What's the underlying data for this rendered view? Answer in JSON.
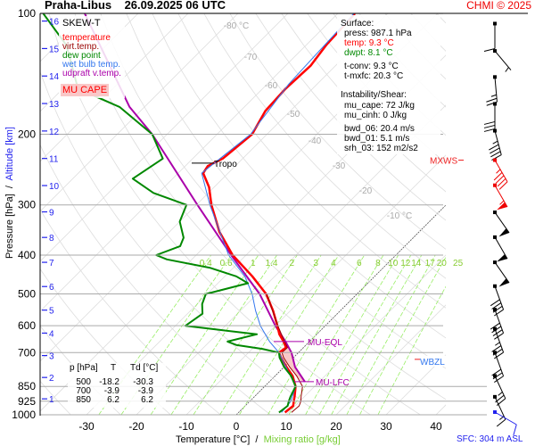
{
  "header": {
    "station": "Praha-Libus",
    "datetime": "26.09.2025 06 UTC",
    "credit": "CHMI © 2025"
  },
  "legend": {
    "title": "SKEW-T",
    "items": [
      {
        "label": "temperature",
        "color": "#ff0000"
      },
      {
        "label": "virt.temp.",
        "color": "#990000"
      },
      {
        "label": "dew point",
        "color": "#008800"
      },
      {
        "label": "wet bulb temp.",
        "color": "#3377ee"
      },
      {
        "label": "udpraft v.temp.",
        "color": "#aa00aa"
      }
    ],
    "cape_label": "MU CAPE"
  },
  "surface": {
    "heading": "Surface:",
    "press": "press: 987.1 hPa",
    "temp": "temp: 9.3 °C",
    "dwpt": "dwpt: 8.1 °C",
    "tconv": "t-conv: 9.3 °C",
    "tmxfc": "t-mxfc: 20.3 °C",
    "instab_heading": "Instability/Shear:",
    "mu_cape": "mu_cape: 72 J/kg",
    "mu_cinh": "mu_cinh: 0 J/kg",
    "bwd_06": "bwd_06: 20.4 m/s",
    "bwd_01": "bwd_01: 5.1 m/s",
    "srh_03": "srh_03: 152 m2/s2"
  },
  "table": {
    "headers": [
      "p [hPa]",
      "T",
      "Td [°C]"
    ],
    "rows": [
      [
        "500",
        "-18.2",
        "-30.3"
      ],
      [
        "700",
        "-3.9",
        "-3.9"
      ],
      [
        "850",
        "6.2",
        "6.2"
      ]
    ]
  },
  "annotations": {
    "tropo": "Tropo",
    "mu_eql": "MU-EQL",
    "mu_lfc": "MU-LFC",
    "mxws": "MXWS",
    "wbzl": "WBZL",
    "sfc": "SFC: 304 m ASL"
  },
  "chart_data": {
    "type": "line",
    "subtype": "skew-T log-p",
    "xlabel": "Temperature [°C]",
    "xlabel_sep": "/",
    "xlabel2": "Mixing ratio [g/kg]",
    "ylabel": "Pressure [hPa]",
    "ylabel_sep": "/",
    "ylabel2": "Altitude [km]",
    "pressure_ticks": [
      "100",
      "200",
      "300",
      "400",
      "500",
      "600",
      "700",
      "850",
      "925",
      "1000"
    ],
    "temperature_ticks": [
      "-30",
      "-20",
      "-10",
      "0",
      "10",
      "20",
      "30",
      "40"
    ],
    "isotherm_labels": [
      "-80 °C",
      "-70",
      "-60",
      "-50",
      "-40",
      "-30",
      "-20",
      "-10 °C"
    ],
    "mixing_ratio_labels": [
      "0.4",
      "0.6",
      "1",
      "1.4",
      "2",
      "3",
      "4",
      "6",
      "8",
      "10",
      "12",
      "14",
      "17",
      "20",
      "25"
    ],
    "altitude_ticks": [
      "1",
      "2",
      "3",
      "4",
      "5",
      "6",
      "7",
      "8",
      "9",
      "10",
      "11",
      "12",
      "13",
      "14",
      "15",
      "16"
    ],
    "ylim": [
      1000,
      100
    ],
    "series": [
      {
        "name": "temperature",
        "color": "#ff0000",
        "points": [
          [
            987,
            9.3
          ],
          [
            950,
            9.6
          ],
          [
            925,
            8.8
          ],
          [
            900,
            8.0
          ],
          [
            850,
            6.2
          ],
          [
            800,
            3.5
          ],
          [
            760,
            0.5
          ],
          [
            720,
            -2.5
          ],
          [
            700,
            -3.9
          ],
          [
            680,
            -3.5
          ],
          [
            657,
            -5.2
          ],
          [
            630,
            -7.5
          ],
          [
            600,
            -9.6
          ],
          [
            550,
            -13.5
          ],
          [
            500,
            -18.2
          ],
          [
            452,
            -24.5
          ],
          [
            400,
            -32.7
          ],
          [
            350,
            -40
          ],
          [
            300,
            -47
          ],
          [
            271,
            -51
          ],
          [
            250,
            -55
          ],
          [
            240,
            -55.5
          ],
          [
            230,
            -54
          ],
          [
            200,
            -53
          ],
          [
            175,
            -55
          ],
          [
            154,
            -55.4
          ],
          [
            135,
            -55
          ],
          [
            120,
            -56
          ],
          [
            100,
            -56.6
          ]
        ]
      },
      {
        "name": "virt.temp.",
        "color": "#990000",
        "points": [
          [
            987,
            10.6
          ],
          [
            950,
            10.8
          ],
          [
            925,
            10.2
          ],
          [
            900,
            9.3
          ],
          [
            850,
            7.6
          ],
          [
            800,
            4.3
          ],
          [
            760,
            1.1
          ],
          [
            720,
            -2.0
          ],
          [
            700,
            -3.3
          ],
          [
            680,
            -3.2
          ],
          [
            657,
            -5.0
          ],
          [
            600,
            -9.5
          ],
          [
            500,
            -18.1
          ]
        ]
      },
      {
        "name": "dew point",
        "color": "#008800",
        "points": [
          [
            987,
            8.1
          ],
          [
            950,
            8.5
          ],
          [
            925,
            7.8
          ],
          [
            900,
            7.2
          ],
          [
            850,
            6.2
          ],
          [
            800,
            3.2
          ],
          [
            760,
            0
          ],
          [
            720,
            -2.8
          ],
          [
            700,
            -3.9
          ],
          [
            685,
            -8
          ],
          [
            670,
            -14
          ],
          [
            657,
            -16.4
          ],
          [
            630,
            -12
          ],
          [
            615,
            -20
          ],
          [
            600,
            -28
          ],
          [
            560,
            -27
          ],
          [
            530,
            -29
          ],
          [
            500,
            -30.3
          ],
          [
            470,
            -24
          ],
          [
            452,
            -27.7
          ],
          [
            430,
            -34.8
          ],
          [
            410,
            -45
          ],
          [
            400,
            -48
          ],
          [
            380,
            -45
          ],
          [
            362,
            -46
          ],
          [
            330,
            -50
          ],
          [
            300,
            -52
          ],
          [
            280,
            -61
          ],
          [
            258,
            -68
          ],
          [
            230,
            -66
          ],
          [
            200,
            -73
          ],
          [
            171,
            -85
          ],
          [
            154,
            -97
          ],
          [
            120,
            -108
          ],
          [
            100,
            -119
          ]
        ]
      },
      {
        "name": "wet bulb temp.",
        "color": "#3377ee",
        "points": [
          [
            987,
            8.6
          ],
          [
            925,
            8.2
          ],
          [
            850,
            6.2
          ],
          [
            700,
            -3.9
          ],
          [
            657,
            -8
          ],
          [
            600,
            -13
          ],
          [
            550,
            -17
          ],
          [
            500,
            -21
          ],
          [
            452,
            -26
          ],
          [
            400,
            -33.5
          ],
          [
            300,
            -47.3
          ],
          [
            250,
            -55.3
          ],
          [
            200,
            -53.3
          ],
          [
            150,
            -55.7
          ],
          [
            100,
            -56.8
          ]
        ]
      },
      {
        "name": "udpraft v.temp.",
        "color": "#aa00aa",
        "points": [
          [
            827,
            7.1
          ],
          [
            760,
            2.2
          ],
          [
            700,
            -1.4
          ],
          [
            657,
            -4.8
          ],
          [
            600,
            -10
          ],
          [
            500,
            -19.5
          ],
          [
            400,
            -33
          ],
          [
            300,
            -49.8
          ],
          [
            200,
            -73
          ],
          [
            171,
            -83
          ],
          [
            100,
            -110.7
          ]
        ]
      }
    ],
    "levels_hPa": {
      "tropopause": 236,
      "mu_eql": 657,
      "mu_lfc": 827,
      "mxws": 232,
      "wbzl": 735
    },
    "wind_barbs": [
      {
        "p": 106,
        "dir": 180,
        "kt": 10
      },
      {
        "p": 124,
        "dir": 140,
        "kt": 5
      },
      {
        "p": 144,
        "dir": 175,
        "kt": 25
      },
      {
        "p": 168,
        "dir": 180,
        "kt": 30
      },
      {
        "p": 196,
        "dir": 165,
        "kt": 45
      },
      {
        "p": 232,
        "dir": 150,
        "kt": 45,
        "max": true
      },
      {
        "p": 268,
        "dir": 150,
        "kt": 55,
        "max": true
      },
      {
        "p": 313,
        "dir": 145,
        "kt": 50
      },
      {
        "p": 361,
        "dir": 150,
        "kt": 50
      },
      {
        "p": 417,
        "dir": 145,
        "kt": 50
      },
      {
        "p": 478,
        "dir": 160,
        "kt": 40
      },
      {
        "p": 547,
        "dir": 160,
        "kt": 40
      },
      {
        "p": 611,
        "dir": 160,
        "kt": 35
      },
      {
        "p": 700,
        "dir": 160,
        "kt": 30
      },
      {
        "p": 800,
        "dir": 155,
        "kt": 25
      },
      {
        "p": 902,
        "dir": 155,
        "kt": 15
      },
      {
        "p": 987,
        "dir": 120,
        "kt": 10,
        "surface": true
      }
    ]
  }
}
